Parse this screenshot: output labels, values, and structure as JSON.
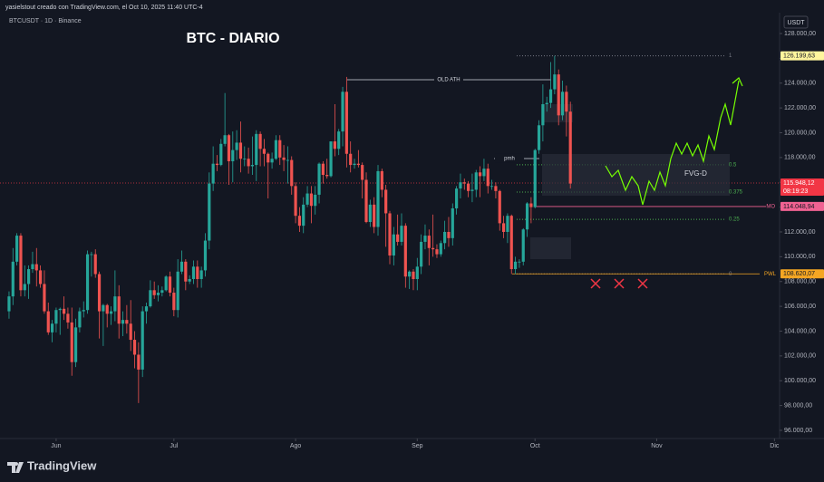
{
  "header": "yasielstout creado con TradingView.com, el Oct 10, 2025 11:40 UTC-4",
  "symbol_line": "BTCUSDT · 1D · Binance",
  "footer": "TradingView",
  "chart_data": {
    "type": "candlestick",
    "title": "BTC - DIARIO",
    "currency": "USDT",
    "up_color": "#26a69a",
    "down_color": "#ef5350",
    "xlim": [
      -2.3,
      196.3
    ],
    "xticks": [
      {
        "value": 12,
        "label": "Jun"
      },
      {
        "value": 42,
        "label": "Jul"
      },
      {
        "value": 73,
        "label": "Ago"
      },
      {
        "value": 104,
        "label": "Sep"
      },
      {
        "value": 134,
        "label": "Oct"
      },
      {
        "value": 165,
        "label": "Nov"
      },
      {
        "value": 195,
        "label": "Dic"
      }
    ],
    "ylim": [
      95340,
      129680
    ],
    "yticks": [
      {
        "value": 96000,
        "label": "96.000,00"
      },
      {
        "value": 98000,
        "label": "98.000,00"
      },
      {
        "value": 100000,
        "label": "100.000,00"
      },
      {
        "value": 102000,
        "label": "102.000,00"
      },
      {
        "value": 104000,
        "label": "104.000,00"
      },
      {
        "value": 106000,
        "label": "106.000,00"
      },
      {
        "value": 108000,
        "label": "108.000,00"
      },
      {
        "value": 110000,
        "label": "110.000,00"
      },
      {
        "value": 112000,
        "label": "112.000,00"
      },
      {
        "value": 114000,
        "label": "114.000,00"
      },
      {
        "value": 116000,
        "label": "116.000,00"
      },
      {
        "value": 118000,
        "label": "118.000,00"
      },
      {
        "value": 120000,
        "label": "120.000,00"
      },
      {
        "value": 122000,
        "label": "122.000,00"
      },
      {
        "value": 124000,
        "label": "124.000,00"
      },
      {
        "value": 126000,
        "label": "126.000,00"
      },
      {
        "value": 128000,
        "label": "128.000,00"
      }
    ],
    "ohlc": [
      [
        105600,
        107200,
        105000,
        106800
      ],
      [
        106800,
        110700,
        106100,
        109600
      ],
      [
        109600,
        111900,
        109300,
        111700
      ],
      [
        111700,
        111900,
        106800,
        107300
      ],
      [
        107300,
        109300,
        106800,
        107800
      ],
      [
        107800,
        109300,
        106600,
        109000
      ],
      [
        109000,
        110400,
        108700,
        109400
      ],
      [
        109400,
        110700,
        107600,
        108900
      ],
      [
        108900,
        109300,
        107500,
        107800
      ],
      [
        107800,
        108900,
        105400,
        105600
      ],
      [
        105600,
        106300,
        103700,
        103900
      ],
      [
        103900,
        104900,
        103100,
        104600
      ],
      [
        104600,
        105900,
        103900,
        105700
      ],
      [
        105700,
        105900,
        103700,
        105800
      ],
      [
        105800,
        106800,
        104900,
        105400
      ],
      [
        105400,
        105900,
        104200,
        104700
      ],
      [
        104700,
        105900,
        100400,
        101500
      ],
      [
        101500,
        105000,
        101100,
        104300
      ],
      [
        104300,
        105900,
        103900,
        105600
      ],
      [
        105600,
        106400,
        105100,
        105700
      ],
      [
        105700,
        110500,
        105400,
        110200
      ],
      [
        110200,
        110400,
        108400,
        110200
      ],
      [
        110200,
        110600,
        108300,
        108600
      ],
      [
        108600,
        108800,
        103400,
        105600
      ],
      [
        105600,
        106200,
        102800,
        106100
      ],
      [
        106100,
        106200,
        104300,
        105400
      ],
      [
        105400,
        106000,
        104500,
        105600
      ],
      [
        105600,
        108900,
        104800,
        106800
      ],
      [
        106800,
        107700,
        103400,
        104600
      ],
      [
        104600,
        105600,
        103600,
        104900
      ],
      [
        104900,
        106100,
        103800,
        104600
      ],
      [
        104600,
        106500,
        102400,
        103300
      ],
      [
        103300,
        104000,
        101000,
        102100
      ],
      [
        102100,
        103100,
        98200,
        100900
      ],
      [
        100900,
        106000,
        100300,
        105600
      ],
      [
        105600,
        106300,
        104600,
        106000
      ],
      [
        106000,
        108100,
        105900,
        107300
      ],
      [
        107300,
        108000,
        106600,
        106900
      ],
      [
        106900,
        107700,
        106400,
        107100
      ],
      [
        107100,
        107600,
        106800,
        107300
      ],
      [
        107300,
        108500,
        107200,
        108400
      ],
      [
        108400,
        108800,
        106800,
        107100
      ],
      [
        107100,
        107500,
        105200,
        105700
      ],
      [
        105700,
        109800,
        105100,
        108800
      ],
      [
        108800,
        110500,
        108600,
        109600
      ],
      [
        109600,
        109800,
        107300,
        108000
      ],
      [
        108000,
        108500,
        107800,
        108200
      ],
      [
        108200,
        109700,
        107800,
        109200
      ],
      [
        109200,
        109700,
        107500,
        108200
      ],
      [
        108200,
        109200,
        107500,
        108900
      ],
      [
        108900,
        111900,
        108400,
        111300
      ],
      [
        111300,
        116800,
        110600,
        115900
      ],
      [
        115900,
        118900,
        115300,
        117500
      ],
      [
        117500,
        118200,
        116900,
        117400
      ],
      [
        117400,
        119500,
        117300,
        119100
      ],
      [
        119100,
        123200,
        118900,
        119800
      ],
      [
        119800,
        119900,
        115800,
        117700
      ],
      [
        117700,
        120100,
        116000,
        118600
      ],
      [
        118600,
        120200,
        117800,
        119200
      ],
      [
        119200,
        120900,
        116800,
        117900
      ],
      [
        117900,
        118900,
        117300,
        117900
      ],
      [
        117900,
        118800,
        116700,
        117300
      ],
      [
        117300,
        119700,
        116600,
        117400
      ],
      [
        117400,
        120200,
        116100,
        119900
      ],
      [
        119900,
        120100,
        117300,
        118700
      ],
      [
        118700,
        119500,
        117300,
        118300
      ],
      [
        118300,
        118400,
        114700,
        117600
      ],
      [
        117600,
        118400,
        117100,
        117900
      ],
      [
        117900,
        119800,
        117800,
        119400
      ],
      [
        119400,
        119800,
        117400,
        118000
      ],
      [
        118000,
        119000,
        116900,
        117800
      ],
      [
        117800,
        118900,
        115900,
        117800
      ],
      [
        117800,
        118100,
        115000,
        115700
      ],
      [
        115700,
        116000,
        112700,
        113300
      ],
      [
        113300,
        114000,
        112000,
        112500
      ],
      [
        112500,
        114800,
        111900,
        114200
      ],
      [
        114200,
        115700,
        114000,
        115100
      ],
      [
        115100,
        115700,
        112700,
        114100
      ],
      [
        114100,
        115700,
        113400,
        115000
      ],
      [
        115000,
        117600,
        114300,
        117500
      ],
      [
        117500,
        117700,
        115900,
        116600
      ],
      [
        116600,
        117900,
        116300,
        116500
      ],
      [
        116500,
        119300,
        116400,
        119300
      ],
      [
        119300,
        122300,
        118100,
        118700
      ],
      [
        118700,
        120300,
        118200,
        120100
      ],
      [
        120100,
        123700,
        118900,
        123300
      ],
      [
        123300,
        124500,
        117200,
        118300
      ],
      [
        118300,
        119300,
        116800,
        117400
      ],
      [
        117400,
        117900,
        117100,
        117500
      ],
      [
        117500,
        118600,
        117200,
        117400
      ],
      [
        117400,
        117600,
        114700,
        116200
      ],
      [
        116200,
        116800,
        112700,
        112800
      ],
      [
        112800,
        114600,
        112400,
        114200
      ],
      [
        114200,
        114800,
        111900,
        112400
      ],
      [
        112400,
        117400,
        111700,
        116900
      ],
      [
        116900,
        117100,
        114800,
        115400
      ],
      [
        115400,
        115800,
        110800,
        113500
      ],
      [
        113500,
        113700,
        109400,
        110100
      ],
      [
        110100,
        112400,
        109300,
        111800
      ],
      [
        111800,
        113400,
        110900,
        111200
      ],
      [
        111200,
        113500,
        110900,
        112500
      ],
      [
        112500,
        112700,
        107500,
        108400
      ],
      [
        108400,
        108900,
        107400,
        108800
      ],
      [
        108800,
        109000,
        107300,
        108200
      ],
      [
        108200,
        109900,
        107300,
        109200
      ],
      [
        109200,
        111800,
        108600,
        111200
      ],
      [
        111200,
        112600,
        110600,
        111700
      ],
      [
        111700,
        112200,
        109300,
        110700
      ],
      [
        110700,
        113400,
        110000,
        110600
      ],
      [
        110600,
        111000,
        109900,
        110200
      ],
      [
        110200,
        111300,
        110000,
        111100
      ],
      [
        111100,
        112900,
        110600,
        112000
      ],
      [
        112000,
        113200,
        110800,
        111500
      ],
      [
        111500,
        114300,
        110900,
        113900
      ],
      [
        113900,
        115700,
        113400,
        115500
      ],
      [
        115500,
        116700,
        114700,
        116000
      ],
      [
        116000,
        116300,
        115400,
        115900
      ],
      [
        115900,
        116100,
        114800,
        115300
      ],
      [
        115300,
        116700,
        114400,
        115400
      ],
      [
        115400,
        117000,
        114800,
        116800
      ],
      [
        116800,
        117300,
        114800,
        116500
      ],
      [
        116500,
        117900,
        116100,
        117100
      ],
      [
        117100,
        117500,
        115100,
        115700
      ],
      [
        115700,
        116200,
        115400,
        115700
      ],
      [
        115700,
        116000,
        114700,
        115300
      ],
      [
        115300,
        115400,
        112100,
        112700
      ],
      [
        112700,
        113300,
        111500,
        112000
      ],
      [
        112000,
        113500,
        111100,
        113300
      ],
      [
        113300,
        113400,
        108600,
        109000
      ],
      [
        109000,
        110000,
        108600,
        109600
      ],
      [
        109600,
        109800,
        109100,
        109600
      ],
      [
        109600,
        112300,
        109300,
        112200
      ],
      [
        112200,
        114400,
        111600,
        114300
      ],
      [
        114300,
        114800,
        112700,
        114000
      ],
      [
        114000,
        118700,
        113900,
        118600
      ],
      [
        118600,
        121000,
        118300,
        120600
      ],
      [
        120600,
        123900,
        119300,
        122300
      ],
      [
        122300,
        122900,
        121700,
        122400
      ],
      [
        122400,
        125700,
        122000,
        123500
      ],
      [
        123500,
        126200,
        123100,
        124700
      ],
      [
        124700,
        125100,
        120600,
        121400
      ],
      [
        121400,
        124200,
        121000,
        123300
      ],
      [
        123300,
        123800,
        119700,
        121700
      ],
      [
        121700,
        122500,
        115500,
        115900
      ]
    ],
    "fib_levels": [
      {
        "label": "1",
        "value": 126199.63,
        "price_label": "126.199,63"
      },
      {
        "label": "0.5",
        "value": 117409.85
      },
      {
        "label": "0.375",
        "value": 115212.4
      },
      {
        "label": "0.25",
        "value": 113015
      },
      {
        "label": "0",
        "value": 108620.07
      }
    ],
    "markers": [
      {
        "label": "OLD ATH",
        "value": 124274
      },
      {
        "label": "pmh",
        "value": 117918
      },
      {
        "label": "MO",
        "value": 114048.94,
        "price_label": "114.048,94"
      },
      {
        "label": "PWL",
        "value": 108620.07,
        "price_label": "108.620,07"
      }
    ],
    "last_price": {
      "value": 115948.12,
      "label": "115.948,12",
      "countdown": "08:19:23"
    },
    "fvg_label": "FVG-D"
  }
}
